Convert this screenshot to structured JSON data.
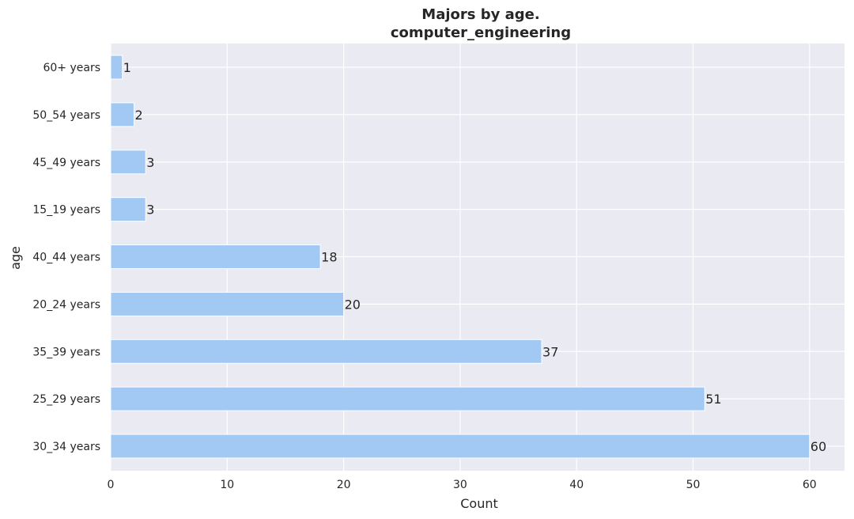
{
  "chart_data": {
    "type": "bar",
    "orientation": "horizontal",
    "title_line1": "Majors by age.",
    "title_line2": "computer_engineering",
    "xlabel": "Count",
    "ylabel": "age",
    "categories": [
      "60+ years",
      "50_54 years",
      "45_49 years",
      "15_19 years",
      "40_44 years",
      "20_24 years",
      "35_39 years",
      "25_29 years",
      "30_34 years"
    ],
    "values": [
      1,
      2,
      3,
      3,
      18,
      20,
      37,
      51,
      60
    ],
    "data_labels": [
      "1",
      "2",
      "3",
      "3",
      "18",
      "20",
      "37",
      "51",
      "60"
    ],
    "xlim": [
      0,
      63
    ],
    "xticks": [
      0,
      10,
      20,
      30,
      40,
      50,
      60
    ],
    "xtick_labels": [
      "0",
      "10",
      "20",
      "30",
      "40",
      "50",
      "60"
    ],
    "grid": true,
    "bar_color": "#a1c9f4",
    "background_color": "#eaeaf2",
    "grid_color": "#ffffff"
  }
}
